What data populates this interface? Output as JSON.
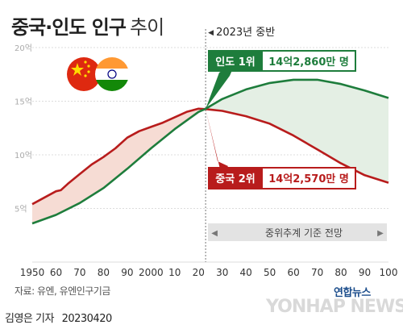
{
  "title": {
    "main": "중국·인도 인구",
    "sub": "추이"
  },
  "colors": {
    "india": "#1e7d3c",
    "china": "#b81c1c",
    "india_fill": "#e4efe4",
    "china_fill": "#f6dcd4",
    "grid": "#dcdcdc",
    "axis_label": "#aaaaaa",
    "projection_band": "#e3e3e3",
    "projection_text": "#444444"
  },
  "flags": [
    {
      "icon": "china-flag-icon",
      "country": "China"
    },
    {
      "icon": "india-flag-icon",
      "country": "India"
    }
  ],
  "annotations": {
    "vline_label": "2023년 중반",
    "projection_label": "중위추계 기준 전망",
    "india_box": {
      "label": "인도 1위",
      "value": "14억2,860만 명"
    },
    "china_box": {
      "label": "중국 2위",
      "value": "14억2,570만 명"
    }
  },
  "source": "자료: 유엔, 유엔인구기금",
  "credit": {
    "author": "김영은 기자",
    "date": "20230420"
  },
  "logo": {
    "korean": "연합뉴스",
    "english": "YONHAP NEWS"
  },
  "chart_data": {
    "type": "line",
    "y_tick_labels": [
      "20억",
      "15억",
      "10억",
      "5억",
      ""
    ],
    "y_ticks": [
      20,
      15,
      10,
      5,
      0
    ],
    "ylim": [
      0,
      20
    ],
    "x_tick_labels": [
      "1950",
      "60",
      "70",
      "80",
      "90",
      "2000",
      "10",
      "20",
      "30",
      "40",
      "50",
      "60",
      "70",
      "80",
      "90",
      "100"
    ],
    "x_ticks": [
      1950,
      1960,
      1970,
      1980,
      1990,
      2000,
      2010,
      2020,
      2030,
      2040,
      2050,
      2060,
      2070,
      2080,
      2090,
      2100
    ],
    "xlim": [
      1950,
      2100
    ],
    "vline_x": 2023,
    "grid": true,
    "series": [
      {
        "name": "중국",
        "x": [
          1950,
          1955,
          1960,
          1962,
          1965,
          1970,
          1975,
          1980,
          1985,
          1990,
          1995,
          2000,
          2005,
          2010,
          2015,
          2020,
          2023,
          2030,
          2040,
          2050,
          2060,
          2070,
          2080,
          2090,
          2100
        ],
        "values": [
          5.4,
          6.0,
          6.6,
          6.7,
          7.3,
          8.2,
          9.1,
          9.8,
          10.6,
          11.6,
          12.2,
          12.6,
          13.0,
          13.5,
          14.0,
          14.3,
          14.26,
          14.1,
          13.6,
          12.9,
          11.8,
          10.5,
          9.2,
          8.1,
          7.4
        ]
      },
      {
        "name": "인도",
        "x": [
          1950,
          1960,
          1970,
          1980,
          1990,
          2000,
          2010,
          2020,
          2023,
          2030,
          2040,
          2050,
          2060,
          2070,
          2080,
          2090,
          2100
        ],
        "values": [
          3.6,
          4.4,
          5.5,
          6.9,
          8.7,
          10.6,
          12.4,
          14.0,
          14.29,
          15.2,
          16.1,
          16.7,
          17.0,
          17.0,
          16.6,
          16.0,
          15.3
        ]
      }
    ]
  }
}
